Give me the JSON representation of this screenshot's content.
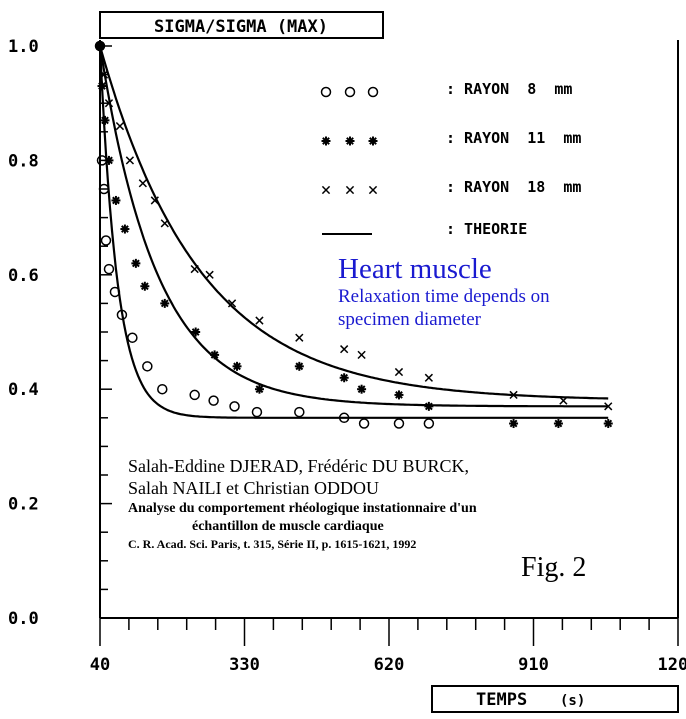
{
  "chart_data": {
    "type": "scatter",
    "title": "SIGMA/SIGMA (MAX)",
    "xlabel": "TEMPS",
    "xunit": "(s)",
    "xlim": [
      40,
      1200
    ],
    "ylim": [
      0,
      1.0
    ],
    "x_ticks": [
      "40",
      "330",
      "620",
      "910",
      "1200"
    ],
    "y_ticks": [
      "0.0",
      "0.2",
      "0.4",
      "0.6",
      "0.8",
      "1.0"
    ],
    "grid": false,
    "legend": {
      "position": "top-right",
      "entries": [
        {
          "marker": "circle",
          "label": ": RAYON  8  mm"
        },
        {
          "marker": "star",
          "label": ": RAYON  11  mm"
        },
        {
          "marker": "cross",
          "label": ": RAYON  18  mm"
        },
        {
          "marker": "line",
          "label": ": THEORIE"
        }
      ]
    },
    "series": [
      {
        "name": "RAYON 8 mm",
        "marker": "circle",
        "points": [
          [
            40,
            1.0
          ],
          [
            44,
            0.8
          ],
          [
            48,
            0.75
          ],
          [
            52,
            0.66
          ],
          [
            58,
            0.61
          ],
          [
            70,
            0.57
          ],
          [
            84,
            0.53
          ],
          [
            105,
            0.49
          ],
          [
            135,
            0.44
          ],
          [
            165,
            0.4
          ],
          [
            230,
            0.39
          ],
          [
            268,
            0.38
          ],
          [
            310,
            0.37
          ],
          [
            355,
            0.36
          ],
          [
            440,
            0.36
          ],
          [
            530,
            0.35
          ],
          [
            570,
            0.34
          ],
          [
            640,
            0.34
          ],
          [
            700,
            0.34
          ]
        ]
      },
      {
        "name": "RAYON 11 mm",
        "marker": "star",
        "points": [
          [
            40,
            1.0
          ],
          [
            44,
            0.93
          ],
          [
            50,
            0.87
          ],
          [
            58,
            0.8
          ],
          [
            72,
            0.73
          ],
          [
            90,
            0.68
          ],
          [
            112,
            0.62
          ],
          [
            130,
            0.58
          ],
          [
            170,
            0.55
          ],
          [
            232,
            0.5
          ],
          [
            270,
            0.46
          ],
          [
            315,
            0.44
          ],
          [
            360,
            0.4
          ],
          [
            440,
            0.44
          ],
          [
            530,
            0.42
          ],
          [
            565,
            0.4
          ],
          [
            640,
            0.39
          ],
          [
            700,
            0.37
          ],
          [
            870,
            0.34
          ],
          [
            960,
            0.34
          ],
          [
            1060,
            0.34
          ]
        ]
      },
      {
        "name": "RAYON 18 mm",
        "marker": "cross",
        "points": [
          [
            40,
            1.0
          ],
          [
            48,
            0.95
          ],
          [
            58,
            0.9
          ],
          [
            80,
            0.86
          ],
          [
            100,
            0.8
          ],
          [
            126,
            0.76
          ],
          [
            150,
            0.73
          ],
          [
            170,
            0.69
          ],
          [
            230,
            0.61
          ],
          [
            260,
            0.6
          ],
          [
            305,
            0.55
          ],
          [
            360,
            0.52
          ],
          [
            440,
            0.49
          ],
          [
            530,
            0.47
          ],
          [
            565,
            0.46
          ],
          [
            640,
            0.43
          ],
          [
            700,
            0.42
          ],
          [
            870,
            0.39
          ],
          [
            970,
            0.38
          ],
          [
            1060,
            0.37
          ]
        ]
      },
      {
        "name": "THEORIE",
        "marker": "line",
        "curves": [
          {
            "asymptote": 0.35,
            "amplitude": 0.65,
            "tau": 35
          },
          {
            "asymptote": 0.37,
            "amplitude": 0.63,
            "tau": 115
          },
          {
            "asymptote": 0.38,
            "amplitude": 0.62,
            "tau": 200
          }
        ],
        "x_end": 1060
      }
    ],
    "annotations": {
      "heading": "Heart muscle",
      "caption_line1": "Relaxation time depends on",
      "caption_line2": "specimen diameter",
      "authors_line1": "Salah-Eddine DJERAD, Frédéric DU BURCK,",
      "authors_line2": "Salah NAILI et Christian ODDOU",
      "ref_line1": "Analyse du comportement rhéologique instationnaire d'un",
      "ref_line2": "échantillon de muscle cardiaque",
      "ref_line3": "C. R. Acad. Sci. Paris, t. 315, Série II, p. 1615-1621, 1992",
      "figure_label": "Fig. 2"
    }
  }
}
